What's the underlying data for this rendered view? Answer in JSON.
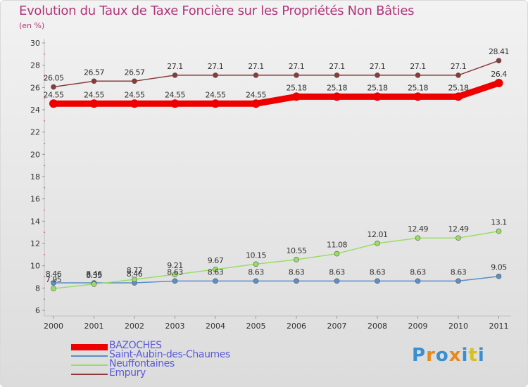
{
  "title": "Evolution du Taux de Taxe Foncière sur les Propriétés Non Bâties",
  "subtitle": "(en %)",
  "logo": {
    "text": "Proxiti",
    "colors": [
      "#3a8fd0",
      "#e88a1a",
      "#3a8fd0",
      "#e88a1a",
      "#3a8fd0",
      "#d4c21a",
      "#3a8fd0"
    ]
  },
  "chart_data": {
    "type": "line",
    "title": "Evolution du Taux de Taxe Foncière sur les Propriétés Non Bâties",
    "ylabel": "(en %)",
    "xlabel": "",
    "ylim": [
      6,
      30
    ],
    "yticks": [
      6,
      8,
      10,
      12,
      14,
      16,
      18,
      20,
      22,
      24,
      26,
      28,
      30
    ],
    "categories": [
      "2000",
      "2001",
      "2002",
      "2003",
      "2004",
      "2005",
      "2006",
      "2007",
      "2008",
      "2009",
      "2010",
      "2011"
    ],
    "series": [
      {
        "name": "BAZOCHES",
        "color": "#ee0000",
        "values": [
          24.55,
          24.55,
          24.55,
          24.55,
          24.55,
          24.55,
          25.18,
          25.18,
          25.18,
          25.18,
          25.18,
          26.4
        ],
        "labels": [
          "24.55",
          "24.55",
          "24.55",
          "24.55",
          "24.55",
          "24.55",
          "25.18",
          "25.18",
          "25.18",
          "25.18",
          "25.18",
          "26.4"
        ]
      },
      {
        "name": "Saint-Aubin-des-Chaumes",
        "color": "#5b8fc7",
        "values": [
          8.46,
          8.46,
          8.46,
          8.63,
          8.63,
          8.63,
          8.63,
          8.63,
          8.63,
          8.63,
          8.63,
          9.05
        ],
        "labels": [
          "8.46",
          "8.46",
          "8.46",
          "8.63",
          "8.63",
          "8.63",
          "8.63",
          "8.63",
          "8.63",
          "8.63",
          "8.63",
          "9.05"
        ]
      },
      {
        "name": "Neuffontaines",
        "color": "#99dd66",
        "values": [
          7.95,
          8.35,
          8.77,
          9.21,
          9.67,
          10.15,
          10.55,
          11.08,
          12.01,
          12.49,
          12.49,
          13.1
        ],
        "labels": [
          "7.95",
          "8.35",
          "8.77",
          "9.21",
          "9.67",
          "10.15",
          "10.55",
          "11.08",
          "12.01",
          "12.49",
          "12.49",
          "13.1"
        ]
      },
      {
        "name": "Empury",
        "color": "#8b3a3a",
        "values": [
          26.05,
          26.57,
          26.57,
          27.1,
          27.1,
          27.1,
          27.1,
          27.1,
          27.1,
          27.1,
          27.1,
          28.41
        ],
        "labels": [
          "26.05",
          "26.57",
          "26.57",
          "27.1",
          "27.1",
          "27.1",
          "27.1",
          "27.1",
          "27.1",
          "27.1",
          "27.1",
          "28.41"
        ]
      }
    ],
    "legend_position": "bottom-left",
    "grid": false
  }
}
